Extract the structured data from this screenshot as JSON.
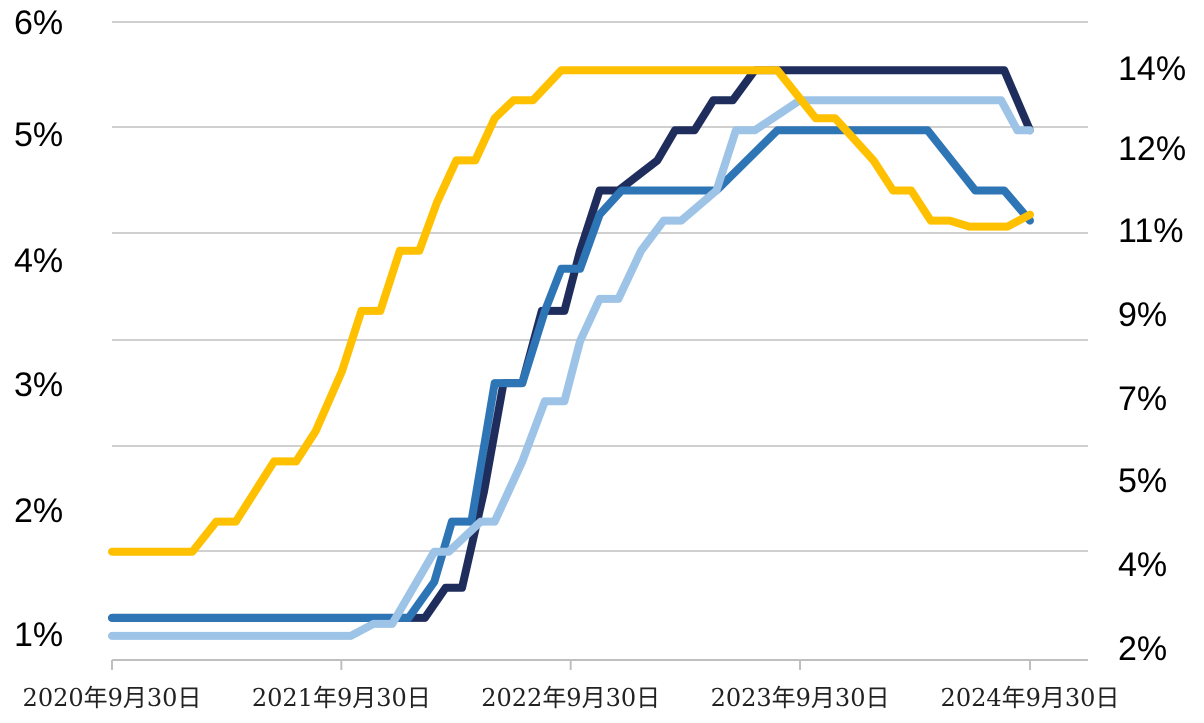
{
  "chart_data": {
    "type": "line",
    "title": "",
    "xlabel": "",
    "ylabel": "",
    "x_tick_labels": [
      "2020年9月30日",
      "2021年9月30日",
      "2022年9月30日",
      "2023年9月30日",
      "2024年9月30日"
    ],
    "x_range": [
      "2020-09-30",
      "2024-09-30"
    ],
    "y_left_tick_labels": [
      "1%",
      "2%",
      "3%",
      "4%",
      "5%",
      "6%"
    ],
    "y_right_tick_labels": [
      "2%",
      "4%",
      "5%",
      "7%",
      "9%",
      "11%",
      "12%",
      "14%"
    ],
    "ylim": [
      0.6,
      5.9
    ],
    "y_unit": "%",
    "grid": true,
    "legend": "none",
    "series": [
      {
        "color": "#1f2d5c",
        "axis": "left",
        "points": [
          [
            "2020-09-30",
            0.95
          ],
          [
            "2022-02-10",
            0.95
          ],
          [
            "2022-03-15",
            1.2
          ],
          [
            "2022-04-10",
            1.2
          ],
          [
            "2022-05-15",
            2.0
          ],
          [
            "2022-06-15",
            2.9
          ],
          [
            "2022-07-15",
            2.9
          ],
          [
            "2022-08-15",
            3.5
          ],
          [
            "2022-09-20",
            3.5
          ],
          [
            "2022-10-15",
            4.0
          ],
          [
            "2022-11-15",
            4.5
          ],
          [
            "2022-12-15",
            4.5
          ],
          [
            "2023-02-15",
            4.75
          ],
          [
            "2023-03-15",
            5.0
          ],
          [
            "2023-04-15",
            5.0
          ],
          [
            "2023-05-15",
            5.25
          ],
          [
            "2023-06-15",
            5.25
          ],
          [
            "2023-07-20",
            5.5
          ],
          [
            "2024-08-20",
            5.5
          ],
          [
            "2024-09-30",
            5.0
          ]
        ]
      },
      {
        "color": "#2e75b6",
        "axis": "left",
        "points": [
          [
            "2020-09-30",
            0.95
          ],
          [
            "2022-01-15",
            0.95
          ],
          [
            "2022-02-25",
            1.25
          ],
          [
            "2022-03-25",
            1.75
          ],
          [
            "2022-04-25",
            1.75
          ],
          [
            "2022-06-01",
            2.9
          ],
          [
            "2022-07-15",
            2.9
          ],
          [
            "2022-08-20",
            3.5
          ],
          [
            "2022-09-15",
            3.85
          ],
          [
            "2022-10-15",
            3.85
          ],
          [
            "2022-11-15",
            4.3
          ],
          [
            "2022-12-20",
            4.5
          ],
          [
            "2023-05-20",
            4.5
          ],
          [
            "2023-08-25",
            5.0
          ],
          [
            "2024-04-20",
            5.0
          ],
          [
            "2024-07-05",
            4.5
          ],
          [
            "2024-08-20",
            4.5
          ],
          [
            "2024-09-30",
            4.25
          ]
        ]
      },
      {
        "color": "#9dc3e6",
        "axis": "left",
        "points": [
          [
            "2020-09-30",
            0.8
          ],
          [
            "2021-10-15",
            0.8
          ],
          [
            "2021-11-20",
            0.9
          ],
          [
            "2021-12-20",
            0.9
          ],
          [
            "2022-02-25",
            1.5
          ],
          [
            "2022-03-20",
            1.5
          ],
          [
            "2022-05-10",
            1.75
          ],
          [
            "2022-06-01",
            1.75
          ],
          [
            "2022-07-15",
            2.25
          ],
          [
            "2022-08-20",
            2.75
          ],
          [
            "2022-09-20",
            2.75
          ],
          [
            "2022-10-15",
            3.25
          ],
          [
            "2022-11-15",
            3.6
          ],
          [
            "2022-12-15",
            3.6
          ],
          [
            "2023-01-20",
            4.0
          ],
          [
            "2023-02-25",
            4.25
          ],
          [
            "2023-03-25",
            4.25
          ],
          [
            "2023-05-20",
            4.5
          ],
          [
            "2023-06-20",
            5.0
          ],
          [
            "2023-07-20",
            5.0
          ],
          [
            "2023-09-30",
            5.25
          ],
          [
            "2024-08-15",
            5.25
          ],
          [
            "2024-09-10",
            5.0
          ],
          [
            "2024-09-30",
            5.0
          ]
        ]
      },
      {
        "color": "#ffc000",
        "axis": "left",
        "points": [
          [
            "2020-09-30",
            1.5
          ],
          [
            "2021-02-05",
            1.5
          ],
          [
            "2021-03-15",
            1.75
          ],
          [
            "2021-04-15",
            1.75
          ],
          [
            "2021-06-15",
            2.25
          ],
          [
            "2021-07-20",
            2.25
          ],
          [
            "2021-08-20",
            2.5
          ],
          [
            "2021-10-01",
            3.0
          ],
          [
            "2021-11-01",
            3.5
          ],
          [
            "2021-12-01",
            3.5
          ],
          [
            "2022-01-01",
            4.0
          ],
          [
            "2022-02-01",
            4.0
          ],
          [
            "2022-03-01",
            4.4
          ],
          [
            "2022-04-01",
            4.75
          ],
          [
            "2022-05-01",
            4.75
          ],
          [
            "2022-06-01",
            5.1
          ],
          [
            "2022-07-01",
            5.25
          ],
          [
            "2022-08-01",
            5.25
          ],
          [
            "2022-09-15",
            5.5
          ],
          [
            "2023-08-25",
            5.5
          ],
          [
            "2023-10-25",
            5.1
          ],
          [
            "2023-11-25",
            5.1
          ],
          [
            "2024-01-25",
            4.75
          ],
          [
            "2024-02-25",
            4.5
          ],
          [
            "2024-03-25",
            4.5
          ],
          [
            "2024-04-25",
            4.25
          ],
          [
            "2024-05-25",
            4.25
          ],
          [
            "2024-06-25",
            4.2
          ],
          [
            "2024-08-25",
            4.2
          ],
          [
            "2024-09-30",
            4.3
          ]
        ]
      }
    ]
  }
}
